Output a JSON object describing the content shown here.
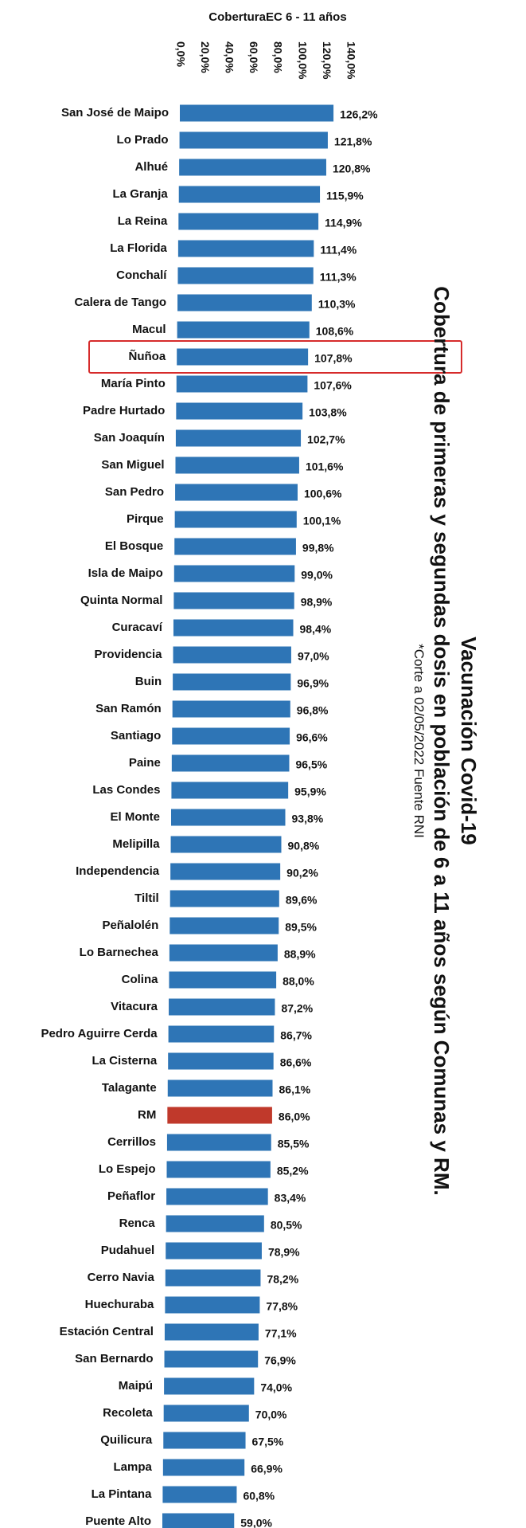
{
  "title_block": {
    "line1": "Vacunación Covid-19",
    "line2": "Cobertura de primeras y segundas dosis en población de 6 a 11 años según Comunas y RM.",
    "line3": "*Corte a 02/05/2022 Fuente RNI"
  },
  "chart_data": {
    "type": "bar",
    "orientation": "horizontal",
    "title": "CoberturaEC 6 - 11 años",
    "xlim": [
      0,
      140
    ],
    "x_ticks": [
      "0,0%",
      "20,0%",
      "40,0%",
      "60,0%",
      "80,0%",
      "100,0%",
      "120,0%",
      "140,0%"
    ],
    "colors": {
      "bar": "#2e75b6",
      "highlight_bar": "#c0392b",
      "highlight_box": "#d62b2b"
    },
    "highlight_bar_category": "RM",
    "boxed_category": "Ñuñoa",
    "categories": [
      "San José de Maipo",
      "Lo Prado",
      "Alhué",
      "La Granja",
      "La Reina",
      "La Florida",
      "Conchalí",
      "Calera de Tango",
      "Macul",
      "Ñuñoa",
      "María Pinto",
      "Padre Hurtado",
      "San Joaquín",
      "San Miguel",
      "San Pedro",
      "Pirque",
      "El Bosque",
      "Isla de Maipo",
      "Quinta Normal",
      "Curacaví",
      "Providencia",
      "Buin",
      "San Ramón",
      "Santiago",
      "Paine",
      "Las Condes",
      "El Monte",
      "Melipilla",
      "Independencia",
      "Tiltil",
      "Peñalolén",
      "Lo Barnechea",
      "Colina",
      "Vitacura",
      "Pedro Aguirre Cerda",
      "La Cisterna",
      "Talagante",
      "RM",
      "Cerrillos",
      "Lo Espejo",
      "Peñaflor",
      "Renca",
      "Pudahuel",
      "Cerro Navia",
      "Huechuraba",
      "Estación Central",
      "San Bernardo",
      "Maipú",
      "Recoleta",
      "Quilicura",
      "Lampa",
      "La Pintana",
      "Puente Alto"
    ],
    "values": [
      126.2,
      121.8,
      120.8,
      115.9,
      114.9,
      111.4,
      111.3,
      110.3,
      108.6,
      107.8,
      107.6,
      103.8,
      102.7,
      101.6,
      100.6,
      100.1,
      99.8,
      99.0,
      98.9,
      98.4,
      97.0,
      96.9,
      96.8,
      96.6,
      96.5,
      95.9,
      93.8,
      90.8,
      90.2,
      89.6,
      89.5,
      88.9,
      88.0,
      87.2,
      86.7,
      86.6,
      86.1,
      86.0,
      85.5,
      85.2,
      83.4,
      80.5,
      78.9,
      78.2,
      77.8,
      77.1,
      76.9,
      74.0,
      70.0,
      67.5,
      66.9,
      60.8,
      59.0
    ],
    "value_labels": [
      "126,2%",
      "121,8%",
      "120,8%",
      "115,9%",
      "114,9%",
      "111,4%",
      "111,3%",
      "110,3%",
      "108,6%",
      "107,8%",
      "107,6%",
      "103,8%",
      "102,7%",
      "101,6%",
      "100,6%",
      "100,1%",
      "99,8%",
      "99,0%",
      "98,9%",
      "98,4%",
      "97,0%",
      "96,9%",
      "96,8%",
      "96,6%",
      "96,5%",
      "95,9%",
      "93,8%",
      "90,8%",
      "90,2%",
      "89,6%",
      "89,5%",
      "88,9%",
      "88,0%",
      "87,2%",
      "86,7%",
      "86,6%",
      "86,1%",
      "86,0%",
      "85,5%",
      "85,2%",
      "83,4%",
      "80,5%",
      "78,9%",
      "78,2%",
      "77,8%",
      "77,1%",
      "76,9%",
      "74,0%",
      "70,0%",
      "67,5%",
      "66,9%",
      "60,8%",
      "59,0%"
    ]
  }
}
